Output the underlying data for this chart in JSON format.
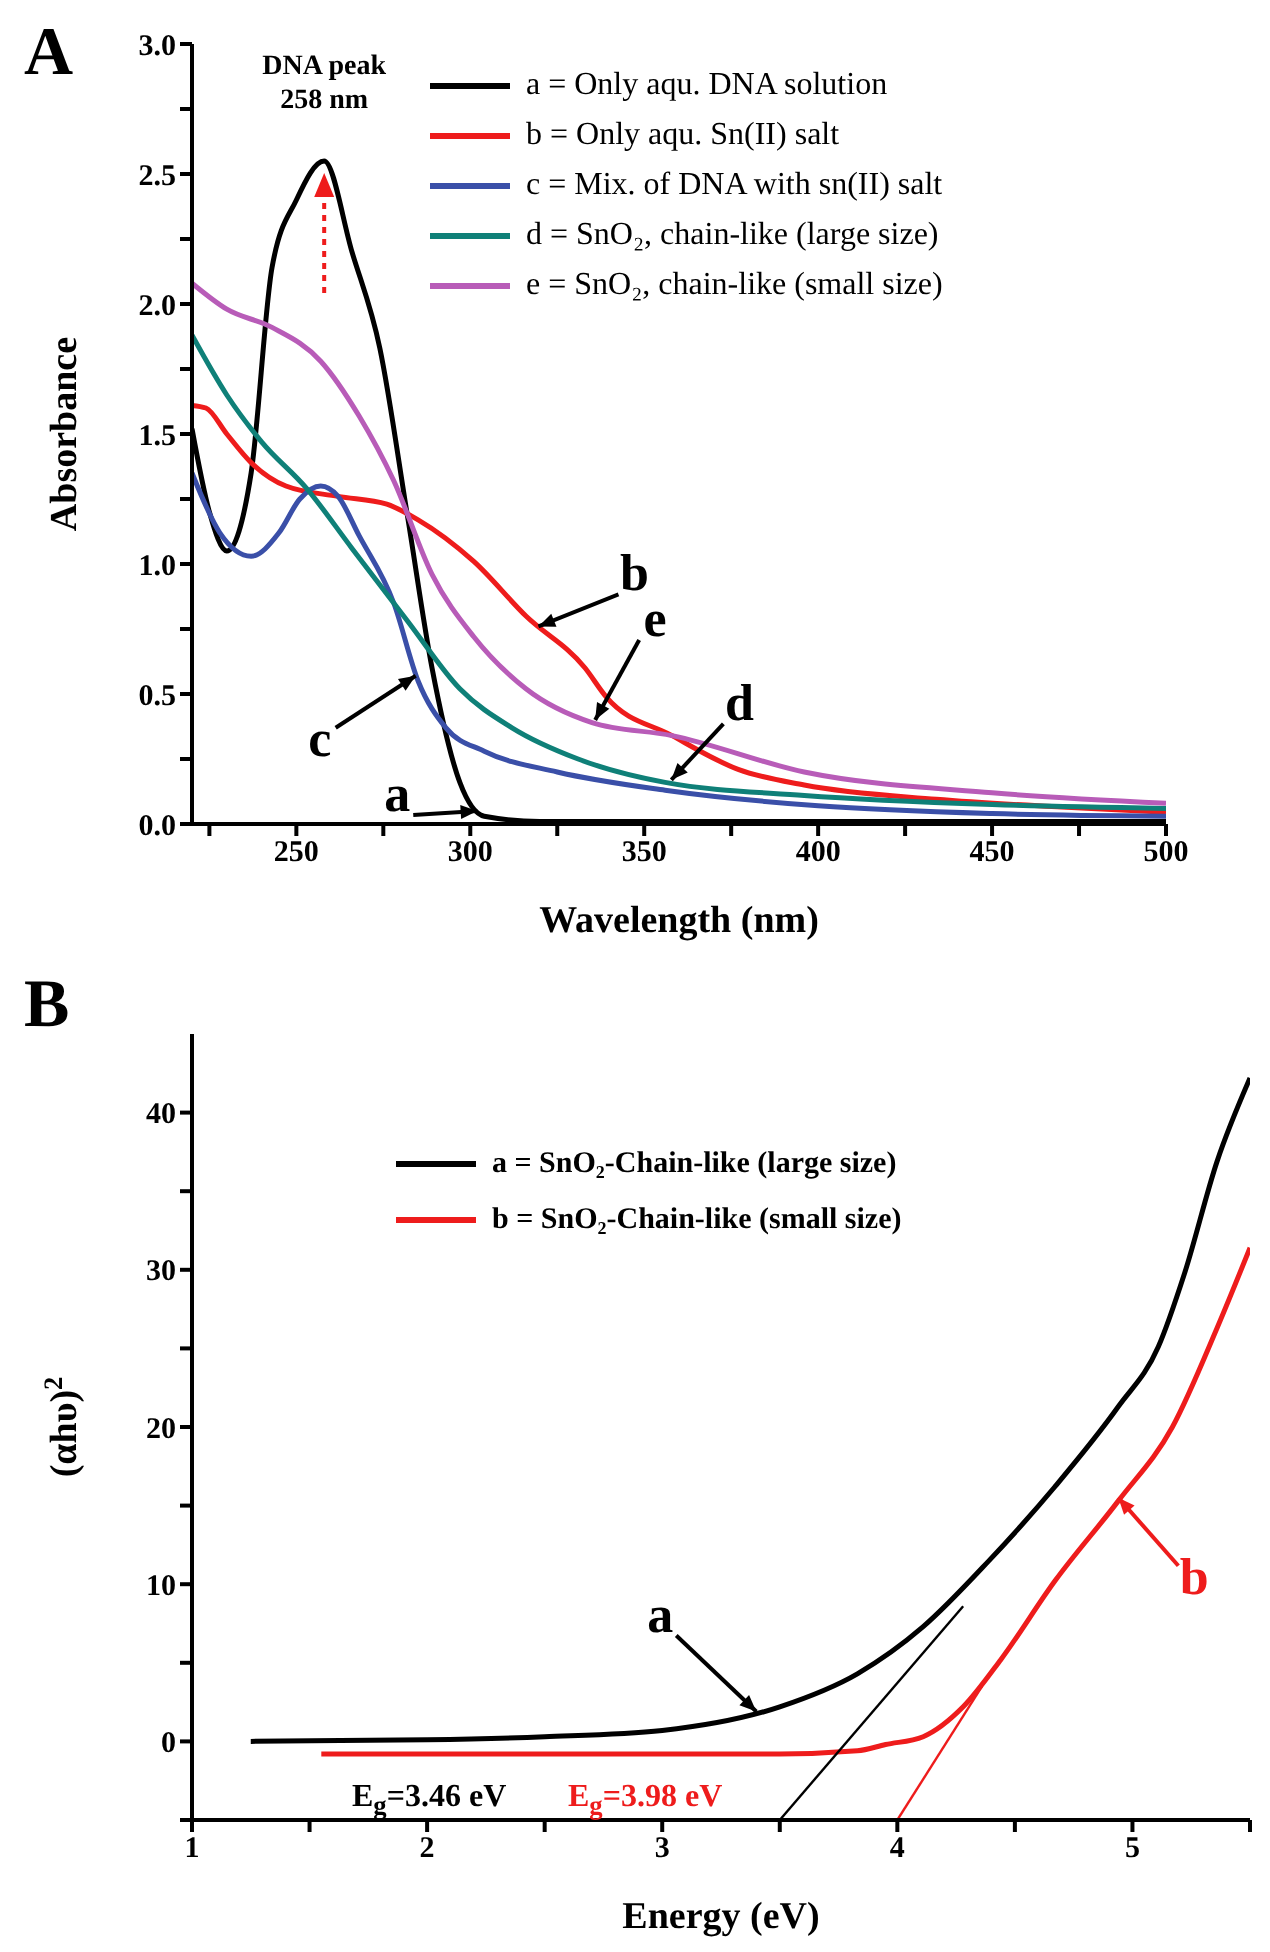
{
  "chart_data": [
    {
      "type": "line",
      "title": "A",
      "xlabel": "Wavelength (nm)",
      "ylabel": "Absorbance",
      "xlim": [
        220,
        500
      ],
      "ylim": [
        0,
        3
      ],
      "xticks": [
        {
          "value": 225,
          "label": null
        },
        250,
        {
          "value": 275,
          "label": null
        },
        300,
        {
          "value": 325,
          "label": null
        },
        350,
        {
          "value": 375,
          "label": null
        },
        400,
        {
          "value": 425,
          "label": null
        },
        450,
        {
          "value": 475,
          "label": null
        },
        500
      ],
      "yticks": [
        {
          "value": 0,
          "label": "0.0"
        },
        {
          "value": 0.25,
          "label": null
        },
        {
          "value": 0.5,
          "label": "0.5"
        },
        {
          "value": 0.75,
          "label": null
        },
        {
          "value": 1,
          "label": "1.0"
        },
        {
          "value": 1.25,
          "label": null
        },
        {
          "value": 1.5,
          "label": "1.5"
        },
        {
          "value": 1.75,
          "label": null
        },
        {
          "value": 2,
          "label": "2.0"
        },
        {
          "value": 2.25,
          "label": null
        },
        {
          "value": 2.5,
          "label": "2.5"
        },
        {
          "value": 2.75,
          "label": null
        },
        {
          "value": 3,
          "label": "3.0"
        }
      ],
      "legend": "top right",
      "series": [
        {
          "name": "a = Only aqu. DNA solution",
          "color": "#000000",
          "x": [
            220,
            225,
            230,
            237,
            243,
            250,
            258,
            266,
            274,
            282,
            289,
            297,
            304,
            320,
            350,
            400,
            450,
            500
          ],
          "values": [
            1.52,
            1.2,
            1.05,
            1.35,
            2.14,
            2.4,
            2.55,
            2.2,
            1.83,
            1.18,
            0.6,
            0.16,
            0.03,
            0.01,
            0.01,
            0.01,
            0.01,
            0.01
          ]
        },
        {
          "name": "b = Only aqu. Sn(II) salt",
          "color": "#ee1c1c",
          "x": [
            220,
            224,
            230,
            237,
            247,
            262,
            276,
            285,
            301,
            316,
            333,
            339,
            358,
            377,
            396,
            434,
            470,
            500
          ],
          "values": [
            1.61,
            1.6,
            1.5,
            1.39,
            1.3,
            1.26,
            1.23,
            1.17,
            1.01,
            0.8,
            0.6,
            0.49,
            0.34,
            0.21,
            0.15,
            0.095,
            0.065,
            0.045
          ]
        },
        {
          "name": "c = Mix. of DNA with sn(II) salt",
          "color": "#3a4fa8",
          "x": [
            220,
            228,
            237,
            245,
            251,
            257,
            262,
            268,
            278,
            285,
            293,
            304,
            325,
            356,
            400,
            450,
            500
          ],
          "values": [
            1.35,
            1.12,
            1.03,
            1.12,
            1.25,
            1.3,
            1.26,
            1.11,
            0.85,
            0.55,
            0.37,
            0.28,
            0.2,
            0.13,
            0.07,
            0.04,
            0.03
          ]
        },
        {
          "name": "d = SnO₂, chain-like (large size)",
          "color": "#0f8078",
          "x": [
            220,
            230,
            240,
            253,
            266,
            282,
            297,
            312,
            331,
            356,
            396,
            450,
            500
          ],
          "values": [
            1.88,
            1.65,
            1.47,
            1.29,
            1.06,
            0.78,
            0.52,
            0.37,
            0.25,
            0.16,
            0.11,
            0.075,
            0.06
          ]
        },
        {
          "name": "e = SnO₂, chain-like (small size)",
          "color": "#b85cb8",
          "x": [
            220,
            230,
            243,
            257,
            268,
            278,
            289,
            301,
            316,
            335,
            358,
            396,
            450,
            500
          ],
          "values": [
            2.08,
            1.98,
            1.91,
            1.78,
            1.57,
            1.32,
            0.96,
            0.72,
            0.52,
            0.39,
            0.34,
            0.2,
            0.12,
            0.08
          ]
        }
      ],
      "annotations": [
        {
          "text": "DNA peak\n258 nm",
          "x": 258,
          "y": 2.55
        },
        {
          "text": "a",
          "x": 302,
          "y": 0.05
        },
        {
          "text": "b",
          "x": 319.6,
          "y": 0.76
        },
        {
          "text": "c",
          "x": 284.3,
          "y": 0.57
        },
        {
          "text": "e",
          "x": 335.9,
          "y": 0.4
        },
        {
          "text": "d",
          "x": 357.8,
          "y": 0.17
        }
      ]
    },
    {
      "type": "line",
      "title": "B",
      "xlabel": "Energy (eV)",
      "ylabel": "(αhυ)$^{2}$",
      "xlim": [
        1,
        5.5
      ],
      "ylim": [
        -5,
        45
      ],
      "xticks": [
        1,
        {
          "value": 1.5,
          "label": null
        },
        2,
        {
          "value": 2.5,
          "label": null
        },
        3,
        {
          "value": 3.5,
          "label": null
        },
        4,
        {
          "value": 4.5,
          "label": null
        },
        5,
        {
          "value": 5.5,
          "label": null
        }
      ],
      "yticks": [
        {
          "value": -5,
          "label": null
        },
        0,
        {
          "value": 5,
          "label": null
        },
        10,
        {
          "value": 15,
          "label": null
        },
        20,
        {
          "value": 25,
          "label": null
        },
        30,
        {
          "value": 35,
          "label": null
        },
        40
      ],
      "legend": "top",
      "series": [
        {
          "name": "a = SnO₂-Chain-like (large size)",
          "color": "#000000",
          "x": [
            1.25,
            2,
            2.5,
            3,
            3.5,
            3.83,
            4.11,
            4.39,
            4.67,
            4.94,
            5.11,
            5.22,
            5.36,
            5.5
          ],
          "values": [
            0,
            0.1,
            0.3,
            0.7,
            2.2,
            4.3,
            7.3,
            11.5,
            16.2,
            21.3,
            25.1,
            29.7,
            36.9,
            42.2
          ]
        },
        {
          "name": "b = SnO₂-Chain-like (small size)",
          "color": "#ee1c1c",
          "x": [
            1.55,
            2.5,
            3.5,
            3.83,
            3.95,
            4.11,
            4.28,
            4.44,
            4.67,
            4.94,
            5.17,
            5.36,
            5.5
          ],
          "values": [
            -0.8,
            -0.8,
            -0.8,
            -0.6,
            -0.2,
            0.3,
            2.2,
            5.2,
            10.2,
            15.3,
            20,
            26.3,
            31.4
          ]
        },
        {
          "color": "#000000",
          "x": [
            3.5,
            4.28
          ],
          "values": [
            -5,
            8.6
          ]
        },
        {
          "color": "#ee1c1c",
          "x": [
            4.0,
            4.36
          ],
          "values": [
            -5,
            3.5
          ]
        }
      ],
      "annotations": [
        {
          "text": "a",
          "x": 3.4,
          "y": 1.9
        },
        {
          "text": "b",
          "x": 4.94,
          "y": 15.5
        },
        "E$_{g}$=3.46 eV",
        "E$_{g}$=3.98 eV"
      ]
    }
  ]
}
